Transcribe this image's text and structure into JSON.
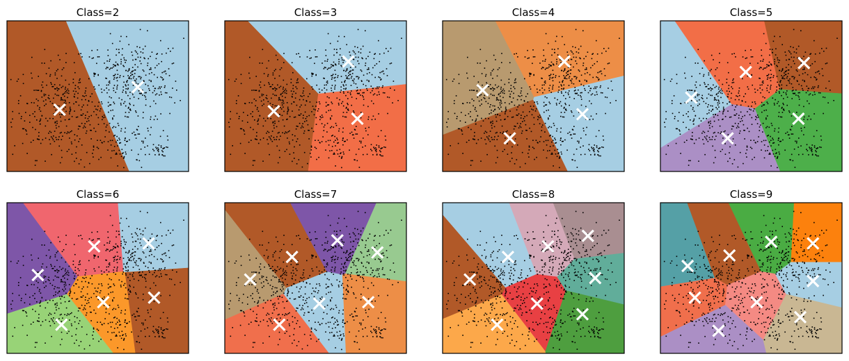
{
  "chart_data": [
    {
      "type": "voronoi",
      "title": "Class=2",
      "regions": [
        {
          "color": "#b15928",
          "center": [
            0.29,
            0.41
          ]
        },
        {
          "color": "#a6cee3",
          "center": [
            0.72,
            0.56
          ]
        }
      ],
      "points_visible": true,
      "axes_ticks": false
    },
    {
      "type": "voronoi",
      "title": "Class=3",
      "regions": [
        {
          "color": "#a6cee3",
          "center": [
            0.68,
            0.73
          ]
        },
        {
          "color": "#b15928",
          "center": [
            0.27,
            0.4
          ]
        },
        {
          "color": "#f26e47",
          "center": [
            0.73,
            0.35
          ]
        }
      ],
      "points_visible": true,
      "axes_ticks": false
    },
    {
      "type": "voronoi",
      "title": "Class=4",
      "regions": [
        {
          "color": "#b89a6f",
          "center": [
            0.22,
            0.54
          ]
        },
        {
          "color": "#ed8e47",
          "center": [
            0.67,
            0.73
          ]
        },
        {
          "color": "#b15928",
          "center": [
            0.37,
            0.22
          ]
        },
        {
          "color": "#a6cee3",
          "center": [
            0.77,
            0.38
          ]
        }
      ],
      "points_visible": true,
      "axes_ticks": false
    },
    {
      "type": "voronoi",
      "title": "Class=5",
      "regions": [
        {
          "color": "#a6cee3",
          "center": [
            0.17,
            0.49
          ]
        },
        {
          "color": "#f26e47",
          "center": [
            0.47,
            0.66
          ]
        },
        {
          "color": "#b15928",
          "center": [
            0.79,
            0.72
          ]
        },
        {
          "color": "#ab8fc5",
          "center": [
            0.37,
            0.22
          ]
        },
        {
          "color": "#4daf4a",
          "center": [
            0.76,
            0.35
          ]
        }
      ],
      "points_visible": true,
      "axes_ticks": false
    },
    {
      "type": "voronoi",
      "title": "Class=6",
      "regions": [
        {
          "color": "#7e56a8",
          "center": [
            0.17,
            0.52
          ]
        },
        {
          "color": "#f0666e",
          "center": [
            0.48,
            0.71
          ]
        },
        {
          "color": "#a6cee3",
          "center": [
            0.78,
            0.73
          ]
        },
        {
          "color": "#98d377",
          "center": [
            0.3,
            0.19
          ]
        },
        {
          "color": "#fb982a",
          "center": [
            0.53,
            0.34
          ]
        },
        {
          "color": "#b15928",
          "center": [
            0.81,
            0.37
          ]
        }
      ],
      "points_visible": true,
      "axes_ticks": false
    },
    {
      "type": "voronoi",
      "title": "Class=7",
      "regions": [
        {
          "color": "#b89a6f",
          "center": [
            0.14,
            0.49
          ]
        },
        {
          "color": "#b15928",
          "center": [
            0.37,
            0.64
          ]
        },
        {
          "color": "#7e56a8",
          "center": [
            0.62,
            0.75
          ]
        },
        {
          "color": "#98ca90",
          "center": [
            0.84,
            0.67
          ]
        },
        {
          "color": "#f06f4c",
          "center": [
            0.3,
            0.19
          ]
        },
        {
          "color": "#a6cee3",
          "center": [
            0.52,
            0.33
          ]
        },
        {
          "color": "#ed8e47",
          "center": [
            0.79,
            0.34
          ]
        }
      ],
      "points_visible": true,
      "axes_ticks": false
    },
    {
      "type": "voronoi",
      "title": "Class=8",
      "regions": [
        {
          "color": "#b15928",
          "center": [
            0.15,
            0.49
          ]
        },
        {
          "color": "#a6cee3",
          "center": [
            0.36,
            0.64
          ]
        },
        {
          "color": "#d4a9b8",
          "center": [
            0.58,
            0.71
          ]
        },
        {
          "color": "#a98e91",
          "center": [
            0.8,
            0.78
          ]
        },
        {
          "color": "#fca84a",
          "center": [
            0.3,
            0.19
          ]
        },
        {
          "color": "#e84043",
          "center": [
            0.52,
            0.33
          ]
        },
        {
          "color": "#61ad9a",
          "center": [
            0.84,
            0.5
          ]
        },
        {
          "color": "#4e9e3f",
          "center": [
            0.77,
            0.26
          ]
        }
      ],
      "points_visible": true,
      "axes_ticks": false
    },
    {
      "type": "voronoi",
      "title": "Class=9",
      "regions": [
        {
          "color": "#55a0a6",
          "center": [
            0.15,
            0.58
          ]
        },
        {
          "color": "#b15928",
          "center": [
            0.38,
            0.65
          ]
        },
        {
          "color": "#4aac43",
          "center": [
            0.61,
            0.74
          ]
        },
        {
          "color": "#fc810d",
          "center": [
            0.84,
            0.73
          ]
        },
        {
          "color": "#f06f4c",
          "center": [
            0.19,
            0.37
          ]
        },
        {
          "color": "#f48a83",
          "center": [
            0.53,
            0.34
          ]
        },
        {
          "color": "#a6cee3",
          "center": [
            0.84,
            0.48
          ]
        },
        {
          "color": "#ab8fc5",
          "center": [
            0.32,
            0.15
          ]
        },
        {
          "color": "#c9b793",
          "center": [
            0.77,
            0.24
          ]
        }
      ],
      "points_visible": true,
      "axes_ticks": false
    }
  ]
}
